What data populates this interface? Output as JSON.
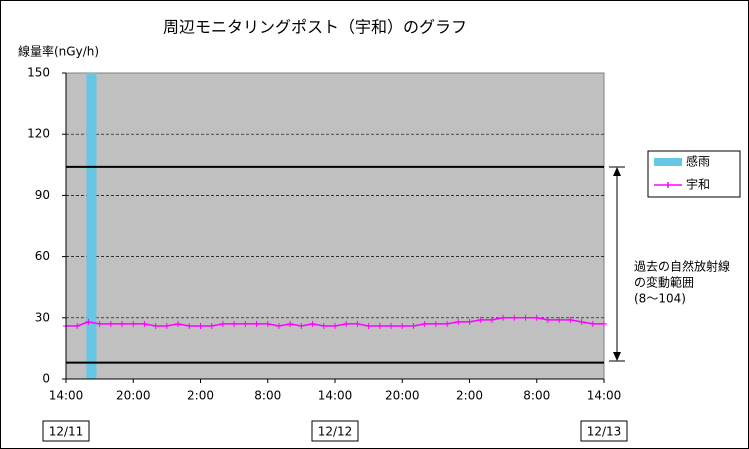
{
  "chart_data": {
    "type": "line",
    "title": "周辺モニタリングポスト（宇和）のグラフ",
    "y_label": "線量率(nGy/h)",
    "categories": [
      "14:00",
      null,
      null,
      null,
      null,
      null,
      "20:00",
      null,
      null,
      null,
      null,
      null,
      "2:00",
      null,
      null,
      null,
      null,
      null,
      "8:00",
      null,
      null,
      null,
      null,
      null,
      "14:00",
      null,
      null,
      null,
      null,
      null,
      "20:00",
      null,
      null,
      null,
      null,
      null,
      "2:00",
      null,
      null,
      null,
      null,
      null,
      "8:00",
      null,
      null,
      null,
      null,
      null,
      "14:00"
    ],
    "dates": [
      "12/11",
      "12/12",
      "12/13"
    ],
    "series": [
      {
        "name": "感雨",
        "type": "bar",
        "color": "#66c6e6",
        "values": [
          null,
          null,
          150,
          null,
          null,
          null,
          null,
          null,
          null,
          null,
          null,
          null,
          null,
          null,
          null,
          null,
          null,
          null,
          null,
          null,
          null,
          null,
          null,
          null,
          null,
          null,
          null,
          null,
          null,
          null,
          null,
          null,
          null,
          null,
          null,
          null,
          null,
          null,
          null,
          null,
          null,
          null,
          null,
          null,
          null,
          null,
          null,
          null,
          null
        ]
      },
      {
        "name": "宇和",
        "type": "line",
        "color": "#ff00ff",
        "values": [
          26,
          26,
          28,
          27,
          27,
          27,
          27,
          27,
          26,
          26,
          27,
          26,
          26,
          26,
          27,
          27,
          27,
          27,
          27,
          26,
          27,
          26,
          27,
          26,
          26,
          27,
          27,
          26,
          26,
          26,
          26,
          26,
          27,
          27,
          27,
          28,
          28,
          29,
          29,
          30,
          30,
          30,
          30,
          29,
          29,
          29,
          28,
          27,
          27
        ]
      }
    ],
    "reference_range": [
      8,
      104
    ],
    "annotation": [
      "過去の自然放射線",
      "の変動範囲",
      "(8～104)"
    ],
    "ylim": [
      0,
      150
    ],
    "yticks": [
      0,
      30,
      60,
      90,
      120,
      150
    ],
    "grid": true
  }
}
